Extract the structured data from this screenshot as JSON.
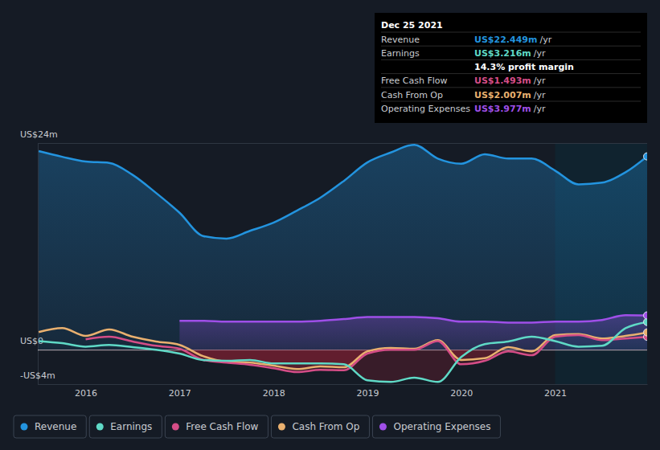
{
  "chart_data": {
    "type": "line",
    "x": [
      2015.5,
      2015.75,
      2016,
      2016.25,
      2016.5,
      2016.75,
      2017,
      2017.25,
      2017.5,
      2017.75,
      2018,
      2018.25,
      2018.5,
      2018.75,
      2019,
      2019.25,
      2019.5,
      2019.75,
      2020,
      2020.25,
      2020.5,
      2020.75,
      2021,
      2021.25,
      2021.5,
      2021.75,
      2021.98
    ],
    "xlim": [
      2015.49,
      2021.98
    ],
    "xticks": [
      2016,
      2017,
      2018,
      2019,
      2020,
      2021
    ],
    "ylim": [
      -4,
      24
    ],
    "yticks": [
      {
        "value": -4,
        "label": "-US$4m"
      },
      {
        "value": 0,
        "label": "US$0"
      },
      {
        "value": 24,
        "label": "US$24m"
      }
    ],
    "grid": true,
    "legend": "bottom-left",
    "series": [
      {
        "name": "Revenue",
        "color": "#2394df",
        "type": "area",
        "values": [
          23.06,
          22.4,
          21.85,
          21.7,
          20.3,
          18.2,
          15.9,
          13.2,
          12.9,
          13.8,
          14.75,
          16.15,
          17.65,
          19.6,
          21.75,
          22.9,
          23.8,
          22.2,
          21.6,
          22.7,
          22.2,
          22.2,
          20.8,
          19.2,
          19.4,
          20.6,
          22.449
        ]
      },
      {
        "name": "Earnings",
        "color": "#5fd9c6",
        "type": "line",
        "values": [
          1.0,
          0.75,
          0.35,
          0.55,
          0.3,
          0.0,
          -0.45,
          -1.2,
          -1.3,
          -1.2,
          -1.6,
          -1.6,
          -1.6,
          -1.7,
          -3.55,
          -3.75,
          -3.25,
          -3.75,
          -0.85,
          0.65,
          0.95,
          1.5,
          1.0,
          0.35,
          0.45,
          2.5,
          3.216
        ]
      },
      {
        "name": "Free Cash Flow",
        "color": "#d54d87",
        "type": "line",
        "values": [
          null,
          null,
          1.2,
          1.5,
          0.95,
          0.45,
          0.1,
          -1.2,
          -1.5,
          -1.75,
          -2.15,
          -2.6,
          -2.35,
          -2.4,
          -0.45,
          0.0,
          0.0,
          1.0,
          -1.7,
          -1.3,
          -0.2,
          -0.65,
          1.5,
          1.7,
          1.1,
          1.3,
          1.493
        ]
      },
      {
        "name": "Cash From Op",
        "color": "#e9b06f",
        "type": "line",
        "values": [
          2.05,
          2.5,
          1.6,
          2.35,
          1.5,
          0.95,
          0.55,
          -0.75,
          -1.4,
          -1.5,
          -1.85,
          -2.25,
          -1.95,
          -2.05,
          -0.2,
          0.2,
          0.1,
          1.1,
          -1.2,
          -1.0,
          0.3,
          -0.2,
          1.7,
          1.8,
          1.3,
          1.6,
          2.007
        ]
      },
      {
        "name": "Operating Expenses",
        "color": "#9f4fe8",
        "type": "area",
        "values": [
          null,
          null,
          null,
          null,
          null,
          null,
          3.35,
          3.35,
          3.25,
          3.25,
          3.25,
          3.25,
          3.35,
          3.55,
          3.8,
          3.8,
          3.8,
          3.65,
          3.25,
          3.25,
          3.15,
          3.15,
          3.25,
          3.25,
          3.45,
          4.0,
          3.977
        ]
      }
    ],
    "tooltip": {
      "title": "Dec 25 2021",
      "rows": [
        {
          "name": "Revenue",
          "value": "US$22.449m",
          "unit": "/yr"
        },
        {
          "name": "Earnings",
          "value": "US$3.216m",
          "unit": "/yr"
        },
        {
          "value": "14.3% profit margin"
        },
        {
          "name": "Free Cash Flow",
          "value": "US$1.493m",
          "unit": "/yr"
        },
        {
          "name": "Cash From Op",
          "value": "US$2.007m",
          "unit": "/yr"
        },
        {
          "name": "Operating Expenses",
          "value": "US$3.977m",
          "unit": "/yr"
        }
      ]
    }
  }
}
